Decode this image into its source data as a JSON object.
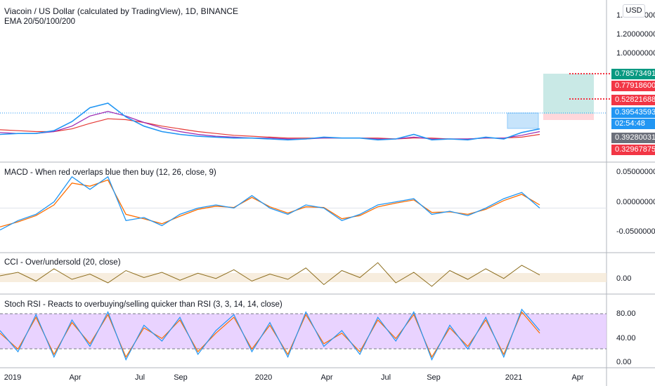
{
  "header": {
    "title": "Viacoin / US Dollar (calculated by TradingView), 1D, BINANCE",
    "indicator": "EMA 20/50/100/200",
    "currency_button": "USD"
  },
  "price_tags": [
    {
      "label": "0.78573491",
      "color": "#089981"
    },
    {
      "label": "0.77918600",
      "color": "#f23645"
    },
    {
      "label": "0.52821688",
      "color": "#f23645"
    },
    {
      "label": "0.39543593",
      "color": "#2196f3"
    },
    {
      "label": "02:54:48",
      "color": "#2196f3"
    },
    {
      "label": "0.39280031",
      "color": "#6b6f7a"
    },
    {
      "label": "0.32967875",
      "color": "#f23645"
    }
  ],
  "panes": {
    "macd_title": "MACD - When red overlaps blue then buy (12, 26, close, 9)",
    "cci_title": "CCI - Over/undersold (20, close)",
    "srsi_title": "Stoch RSI - Reacts to overbuying/selling quicker than RSI (3, 3, 14, 14, close)"
  },
  "colors": {
    "price": "#2196f3",
    "ema_short": "#9c27b0",
    "ema_long": "#e53935",
    "macd": "#2196f3",
    "signal": "#ff6d00",
    "cci": "#8d6e1f",
    "rsi_band": "#e1c4ff",
    "long_profit_zone": "#b2dfdb",
    "long_stop_zone": "#ffcdd2"
  },
  "chart_data": [
    {
      "type": "line",
      "x_ticks": [
        "2019",
        "Apr",
        "Jul",
        "Sep",
        "2020",
        "Apr",
        "Jul",
        "Sep",
        "2021",
        "Apr"
      ],
      "y_ticks": [
        "1.40000000",
        "1.20000000",
        "1.00000000"
      ],
      "series": [
        {
          "values": [
            0.33,
            0.34,
            0.34,
            0.37,
            0.47,
            0.62,
            0.67,
            0.52,
            0.42,
            0.36,
            0.33,
            0.31,
            0.3,
            0.29,
            0.29,
            0.28,
            0.27,
            0.28,
            0.3,
            0.29,
            0.29,
            0.27,
            0.28,
            0.33,
            0.27,
            0.28,
            0.27,
            0.3,
            0.28,
            0.35,
            0.39
          ]
        },
        {
          "name": "",
          "values": [
            0.35,
            0.34,
            0.34,
            0.36,
            0.42,
            0.53,
            0.58,
            0.53,
            0.46,
            0.4,
            0.36,
            0.33,
            0.31,
            0.3,
            0.29,
            0.29,
            0.28,
            0.28,
            0.29,
            0.29,
            0.29,
            0.28,
            0.28,
            0.3,
            0.28,
            0.28,
            0.28,
            0.29,
            0.29,
            0.32,
            0.36
          ]
        },
        {
          "name": "",
          "values": [
            0.38,
            0.37,
            0.36,
            0.36,
            0.39,
            0.45,
            0.5,
            0.49,
            0.46,
            0.42,
            0.39,
            0.36,
            0.34,
            0.32,
            0.31,
            0.3,
            0.29,
            0.29,
            0.29,
            0.29,
            0.29,
            0.29,
            0.28,
            0.29,
            0.29,
            0.28,
            0.28,
            0.29,
            0.29,
            0.3,
            0.33
          ]
        }
      ]
    },
    {
      "type": "line",
      "y_ticks": [
        "0.05000000",
        "0.00000000",
        "-0.05000000"
      ],
      "series": [
        {
          "values": [
            -0.035,
            -0.02,
            -0.01,
            0.01,
            0.05,
            0.03,
            0.05,
            -0.02,
            -0.015,
            -0.028,
            -0.01,
            0.0,
            0.005,
            0.0,
            0.02,
            0.0,
            -0.01,
            0.005,
            0.0,
            -0.02,
            -0.01,
            0.005,
            0.01,
            0.015,
            -0.01,
            -0.005,
            -0.012,
            0.0,
            0.015,
            0.025,
            0.0
          ]
        },
        {
          "values": [
            -0.03,
            -0.022,
            -0.012,
            0.005,
            0.04,
            0.035,
            0.045,
            -0.01,
            -0.017,
            -0.025,
            -0.013,
            -0.002,
            0.003,
            0.001,
            0.017,
            0.002,
            -0.008,
            0.002,
            0.001,
            -0.017,
            -0.012,
            0.002,
            0.008,
            0.013,
            -0.007,
            -0.006,
            -0.01,
            -0.002,
            0.012,
            0.022,
            0.005
          ]
        }
      ]
    },
    {
      "type": "line",
      "y_ticks": [
        "0.00"
      ],
      "series": [
        {
          "values": [
            0,
            40,
            -60,
            80,
            -40,
            20,
            -80,
            60,
            -20,
            40,
            -50,
            30,
            -30,
            70,
            -60,
            20,
            -40,
            90,
            -100,
            60,
            -20,
            150,
            -80,
            40,
            -120,
            60,
            -40,
            80,
            -30,
            120,
            10
          ]
        }
      ]
    },
    {
      "type": "line",
      "y_ticks": [
        "80.00",
        "40.00",
        "0.00"
      ],
      "ylim": [
        0,
        100
      ],
      "series": [
        {
          "values": [
            60,
            20,
            90,
            10,
            80,
            30,
            95,
            5,
            70,
            40,
            85,
            15,
            60,
            90,
            20,
            75,
            10,
            95,
            30,
            60,
            15,
            85,
            40,
            95,
            5,
            70,
            25,
            85,
            10,
            100,
            60
          ]
        },
        {
          "values": [
            55,
            25,
            85,
            15,
            75,
            35,
            90,
            10,
            65,
            45,
            80,
            20,
            55,
            85,
            25,
            70,
            15,
            90,
            35,
            55,
            20,
            80,
            45,
            90,
            10,
            65,
            30,
            80,
            15,
            95,
            55
          ]
        }
      ]
    }
  ]
}
